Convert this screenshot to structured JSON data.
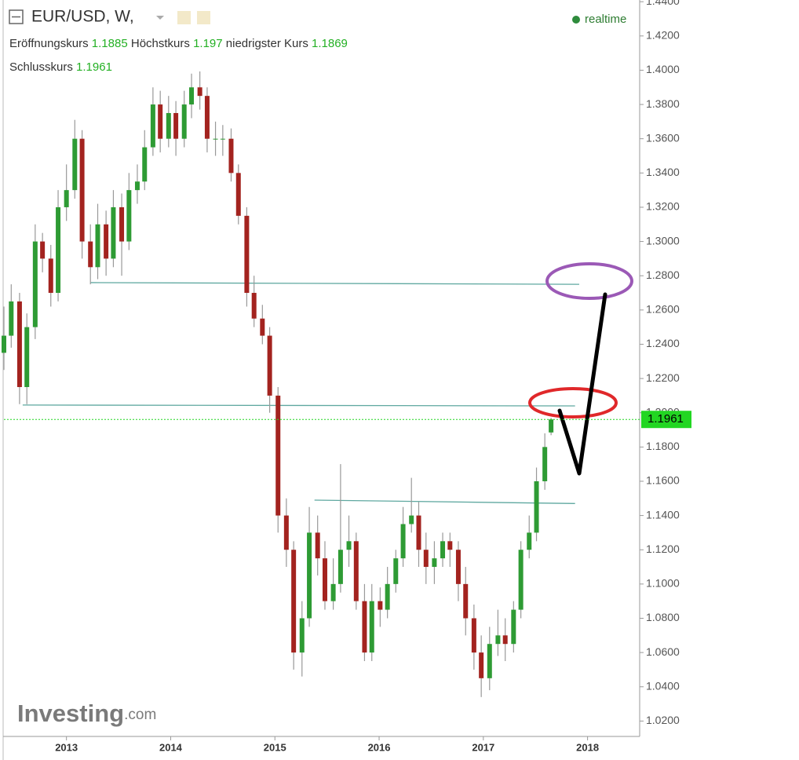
{
  "header": {
    "title": "EUR/USD, W,",
    "status": "realtime",
    "open_label": "Eröffnungskurs",
    "open": 1.1885,
    "high_label": "Höchstkurs",
    "high": 1.197,
    "low_label": "niedrigster Kurs",
    "low": 1.1869,
    "close_label": "Schlusskurs",
    "close": 1.1961,
    "logo": "Investing",
    "logo_suffix": ".com"
  },
  "chart_data": {
    "type": "candlestick",
    "up_color": "#2e9b34",
    "down_color": "#a3231f",
    "wick_color": "#999999",
    "x": [
      2012.4,
      2012.47,
      2012.55,
      2012.62,
      2012.7,
      2012.77,
      2012.85,
      2012.92,
      2013.0,
      2013.08,
      2013.15,
      2013.23,
      2013.3,
      2013.38,
      2013.45,
      2013.53,
      2013.6,
      2013.68,
      2013.75,
      2013.83,
      2013.9,
      2013.98,
      2014.05,
      2014.13,
      2014.2,
      2014.28,
      2014.35,
      2014.43,
      2014.5,
      2014.58,
      2014.65,
      2014.73,
      2014.8,
      2014.88,
      2014.95,
      2015.03,
      2015.11,
      2015.18,
      2015.26,
      2015.33,
      2015.41,
      2015.48,
      2015.56,
      2015.63,
      2015.71,
      2015.78,
      2015.86,
      2015.93,
      2016.01,
      2016.08,
      2016.16,
      2016.23,
      2016.31,
      2016.38,
      2016.45,
      2016.53,
      2016.61,
      2016.68,
      2016.76,
      2016.83,
      2016.91,
      2016.98,
      2017.06,
      2017.14,
      2017.21,
      2017.29,
      2017.36,
      2017.44,
      2017.51,
      2017.59,
      2017.65
    ],
    "open": [
      1.235,
      1.245,
      1.265,
      1.215,
      1.25,
      1.3,
      1.29,
      1.27,
      1.32,
      1.33,
      1.36,
      1.3,
      1.285,
      1.31,
      1.29,
      1.32,
      1.3,
      1.33,
      1.335,
      1.355,
      1.38,
      1.36,
      1.375,
      1.36,
      1.38,
      1.39,
      1.385,
      1.36,
      1.36,
      1.36,
      1.34,
      1.315,
      1.27,
      1.255,
      1.245,
      1.21,
      1.14,
      1.12,
      1.06,
      1.08,
      1.13,
      1.115,
      1.09,
      1.1,
      1.12,
      1.125,
      1.09,
      1.06,
      1.09,
      1.085,
      1.1,
      1.115,
      1.135,
      1.14,
      1.12,
      1.11,
      1.115,
      1.125,
      1.12,
      1.1,
      1.08,
      1.06,
      1.045,
      1.065,
      1.07,
      1.065,
      1.085,
      1.12,
      1.13,
      1.16,
      1.1885
    ],
    "high": [
      1.262,
      1.275,
      1.27,
      1.258,
      1.31,
      1.305,
      1.298,
      1.33,
      1.345,
      1.371,
      1.365,
      1.31,
      1.322,
      1.318,
      1.33,
      1.328,
      1.34,
      1.345,
      1.365,
      1.39,
      1.388,
      1.385,
      1.382,
      1.388,
      1.398,
      1.3993,
      1.39,
      1.37,
      1.368,
      1.366,
      1.345,
      1.32,
      1.28,
      1.263,
      1.25,
      1.215,
      1.15,
      1.125,
      1.09,
      1.145,
      1.14,
      1.125,
      1.115,
      1.17,
      1.14,
      1.13,
      1.1,
      1.1,
      1.098,
      1.11,
      1.12,
      1.145,
      1.162,
      1.148,
      1.13,
      1.125,
      1.13,
      1.13,
      1.125,
      1.11,
      1.088,
      1.07,
      1.075,
      1.085,
      1.08,
      1.09,
      1.125,
      1.14,
      1.168,
      1.188,
      1.197
    ],
    "low": [
      1.225,
      1.238,
      1.205,
      1.205,
      1.243,
      1.282,
      1.262,
      1.265,
      1.312,
      1.325,
      1.29,
      1.275,
      1.278,
      1.28,
      1.285,
      1.28,
      1.295,
      1.322,
      1.33,
      1.35,
      1.352,
      1.355,
      1.35,
      1.355,
      1.372,
      1.377,
      1.352,
      1.35,
      1.35,
      1.335,
      1.31,
      1.262,
      1.25,
      1.24,
      1.2,
      1.13,
      1.11,
      1.05,
      1.046,
      1.075,
      1.105,
      1.085,
      1.085,
      1.095,
      1.11,
      1.085,
      1.055,
      1.055,
      1.075,
      1.08,
      1.095,
      1.11,
      1.13,
      1.11,
      1.1,
      1.1,
      1.11,
      1.11,
      1.09,
      1.07,
      1.05,
      1.034,
      1.038,
      1.058,
      1.055,
      1.06,
      1.08,
      1.115,
      1.125,
      1.155,
      1.1869
    ],
    "close": [
      1.245,
      1.265,
      1.215,
      1.25,
      1.3,
      1.29,
      1.27,
      1.32,
      1.33,
      1.36,
      1.3,
      1.285,
      1.31,
      1.29,
      1.32,
      1.3,
      1.33,
      1.335,
      1.355,
      1.38,
      1.36,
      1.375,
      1.36,
      1.38,
      1.39,
      1.385,
      1.36,
      1.36,
      1.36,
      1.34,
      1.315,
      1.27,
      1.255,
      1.245,
      1.21,
      1.14,
      1.12,
      1.06,
      1.08,
      1.13,
      1.115,
      1.09,
      1.1,
      1.12,
      1.125,
      1.09,
      1.06,
      1.09,
      1.085,
      1.1,
      1.115,
      1.135,
      1.14,
      1.12,
      1.11,
      1.115,
      1.125,
      1.12,
      1.1,
      1.08,
      1.06,
      1.045,
      1.065,
      1.07,
      1.065,
      1.085,
      1.12,
      1.13,
      1.16,
      1.18,
      1.1961
    ],
    "trendline_color": "#5fa8a0",
    "trendlines": [
      {
        "x": [
          2013.23,
          2017.92
        ],
        "y": [
          1.276,
          1.275
        ]
      },
      {
        "x": [
          2012.58,
          2017.88
        ],
        "y": [
          1.2045,
          1.204
        ]
      },
      {
        "x": [
          2015.38,
          2017.88
        ],
        "y": [
          1.149,
          1.147
        ]
      }
    ],
    "last_color": "#22d622",
    "xlim": [
      2012.4,
      2018.5
    ],
    "xticks": [
      2013,
      2014,
      2015,
      2016,
      2017,
      2018
    ],
    "ylim": [
      1.011,
      1.441
    ],
    "yticks": [
      {
        "value": 1.02,
        "label": "1.0200"
      },
      {
        "value": 1.04,
        "label": "1.0400"
      },
      {
        "value": 1.06,
        "label": "1.0600"
      },
      {
        "value": 1.08,
        "label": "1.0800"
      },
      {
        "value": 1.1,
        "label": "1.1000"
      },
      {
        "value": 1.12,
        "label": "1.1200"
      },
      {
        "value": 1.14,
        "label": "1.1400"
      },
      {
        "value": 1.16,
        "label": "1.1600"
      },
      {
        "value": 1.18,
        "label": "1.1800"
      },
      {
        "value": 1.2,
        "label": "1.2000"
      },
      {
        "value": 1.22,
        "label": "1.2200"
      },
      {
        "value": 1.24,
        "label": "1.2400"
      },
      {
        "value": 1.26,
        "label": "1.2600"
      },
      {
        "value": 1.28,
        "label": "1.2800"
      },
      {
        "value": 1.3,
        "label": "1.3000"
      },
      {
        "value": 1.32,
        "label": "1.3200"
      },
      {
        "value": 1.34,
        "label": "1.3400"
      },
      {
        "value": 1.36,
        "label": "1.3600"
      },
      {
        "value": 1.38,
        "label": "1.3800"
      },
      {
        "value": 1.4,
        "label": "1.4000"
      },
      {
        "value": 1.42,
        "label": "1.4200"
      },
      {
        "value": 1.44,
        "label": "1.4400"
      }
    ]
  }
}
